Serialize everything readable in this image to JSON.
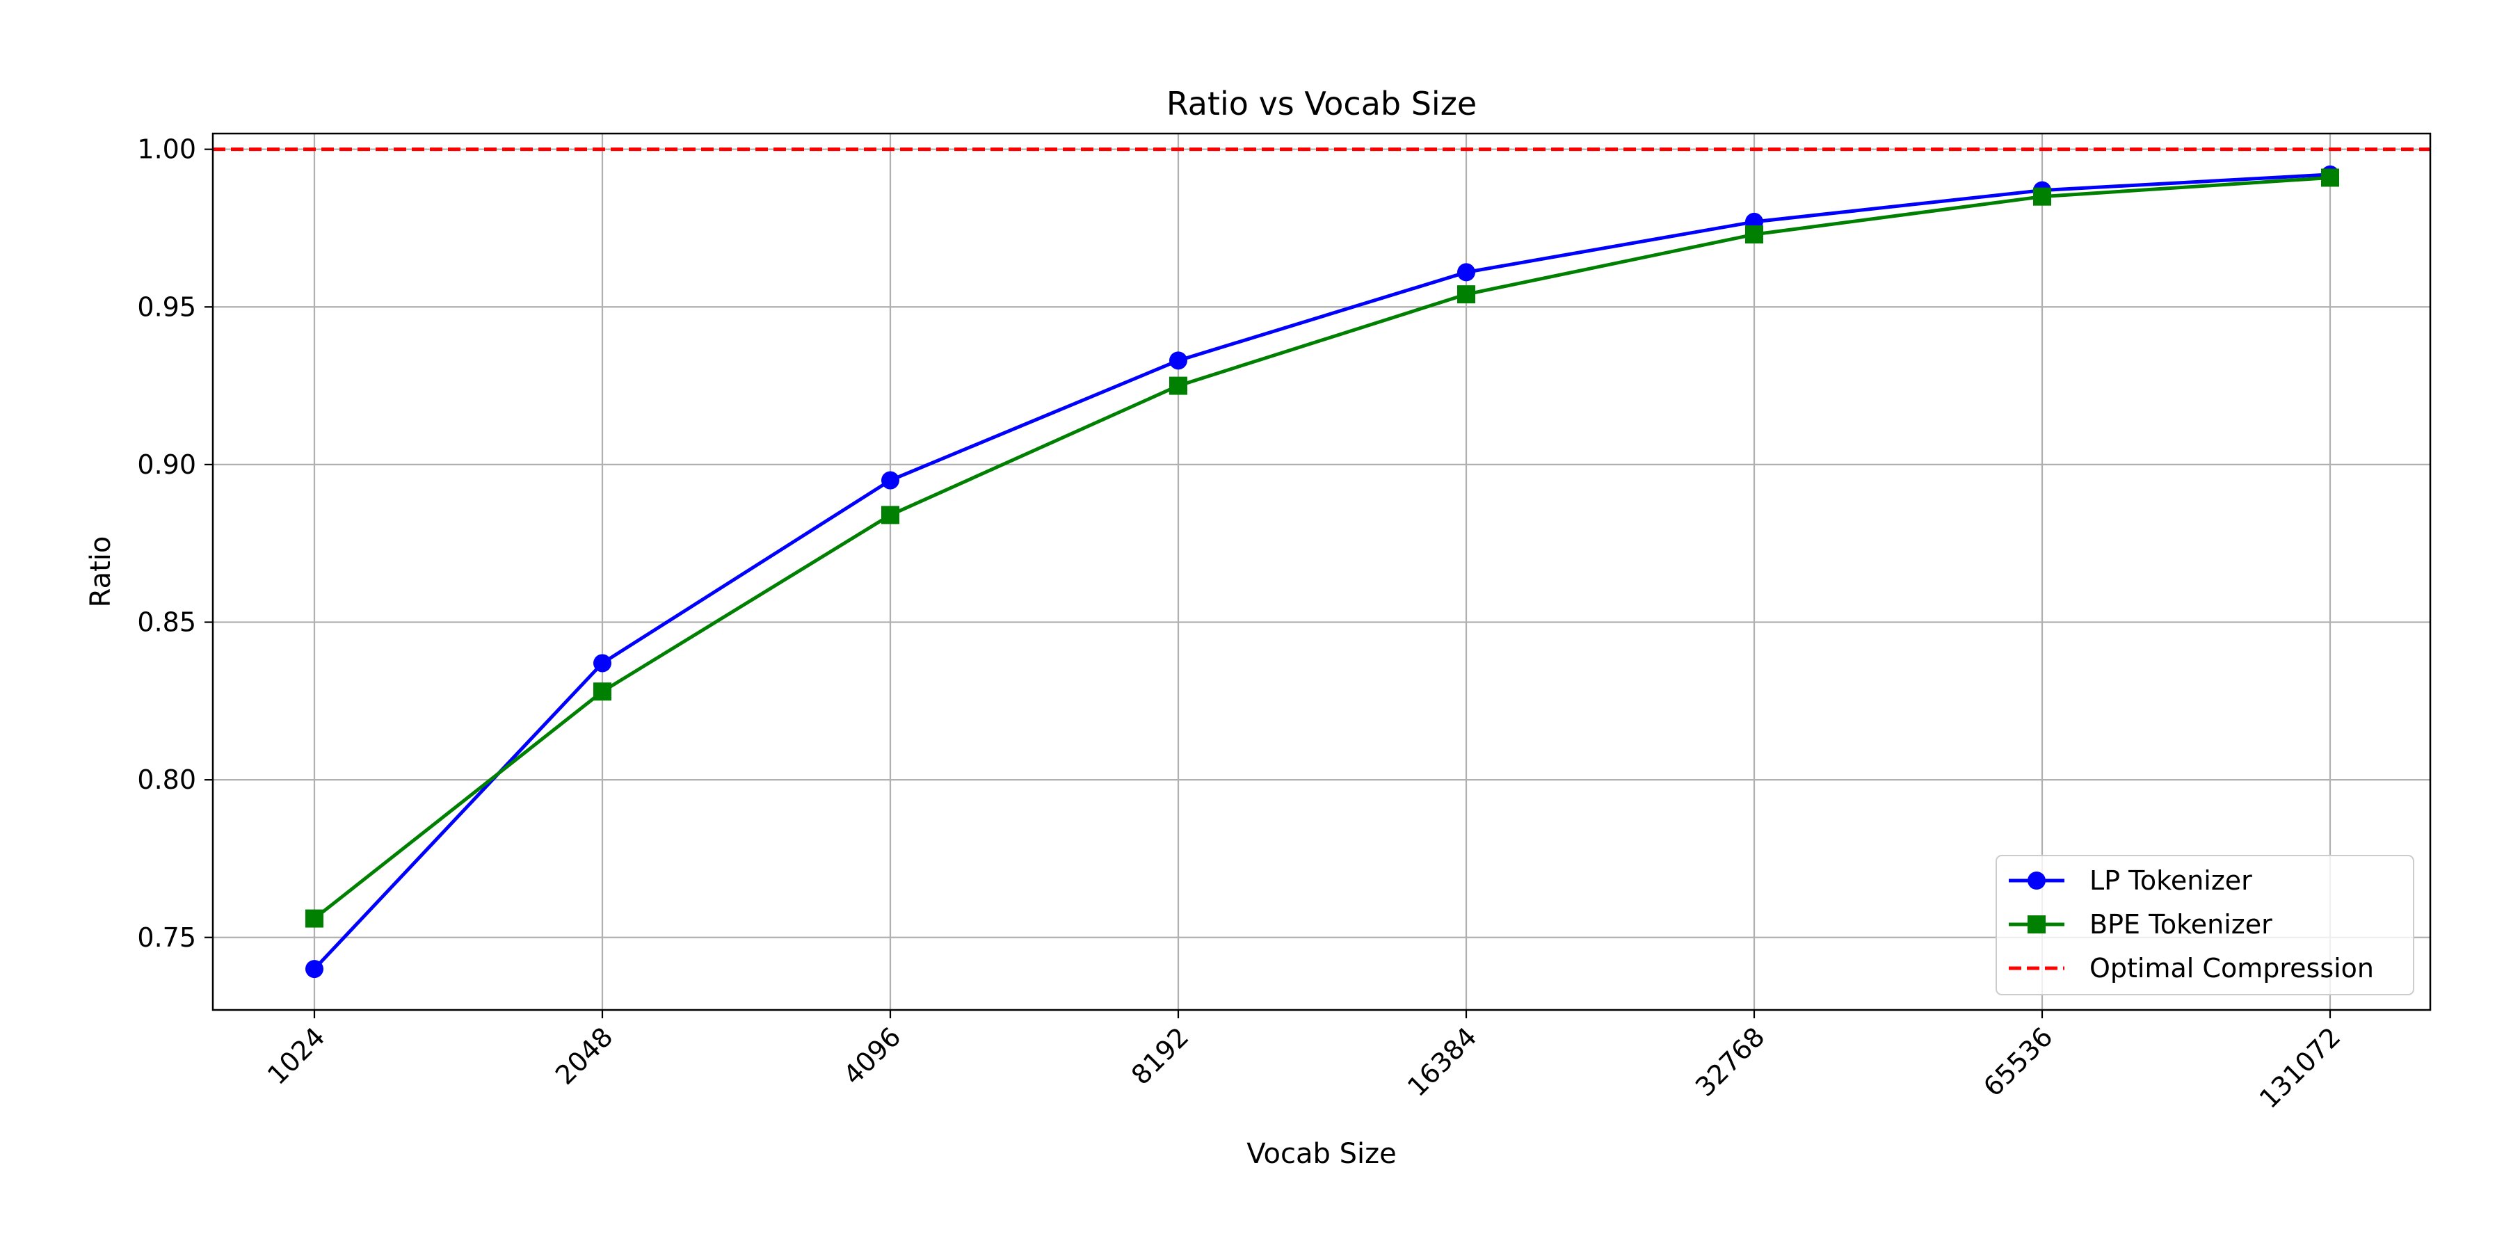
{
  "chart_data": {
    "type": "line",
    "title": "Ratio vs Vocab Size",
    "xlabel": "Vocab Size",
    "ylabel": "Ratio",
    "categories": [
      "1024",
      "2048",
      "4096",
      "8192",
      "16384",
      "32768",
      "65536",
      "131072"
    ],
    "ylim": [
      0.727,
      1.005
    ],
    "yticks": [
      0.75,
      0.8,
      0.85,
      0.9,
      0.95,
      1.0
    ],
    "ytick_labels": [
      "0.75",
      "0.80",
      "0.85",
      "0.90",
      "0.95",
      "1.00"
    ],
    "grid": true,
    "legend_position": "lower-right",
    "series": [
      {
        "name": "LP Tokenizer",
        "color": "#0000ff",
        "marker": "circle",
        "values": [
          0.74,
          0.837,
          0.895,
          0.933,
          0.961,
          0.977,
          0.987,
          0.992
        ]
      },
      {
        "name": "BPE Tokenizer",
        "color": "#008000",
        "marker": "square",
        "values": [
          0.756,
          0.828,
          0.884,
          0.925,
          0.954,
          0.973,
          0.985,
          0.991
        ]
      }
    ],
    "reference_lines": [
      {
        "name": "Optimal Compression",
        "value": 1.0,
        "color": "#ff0000",
        "style": "dashed"
      }
    ]
  }
}
